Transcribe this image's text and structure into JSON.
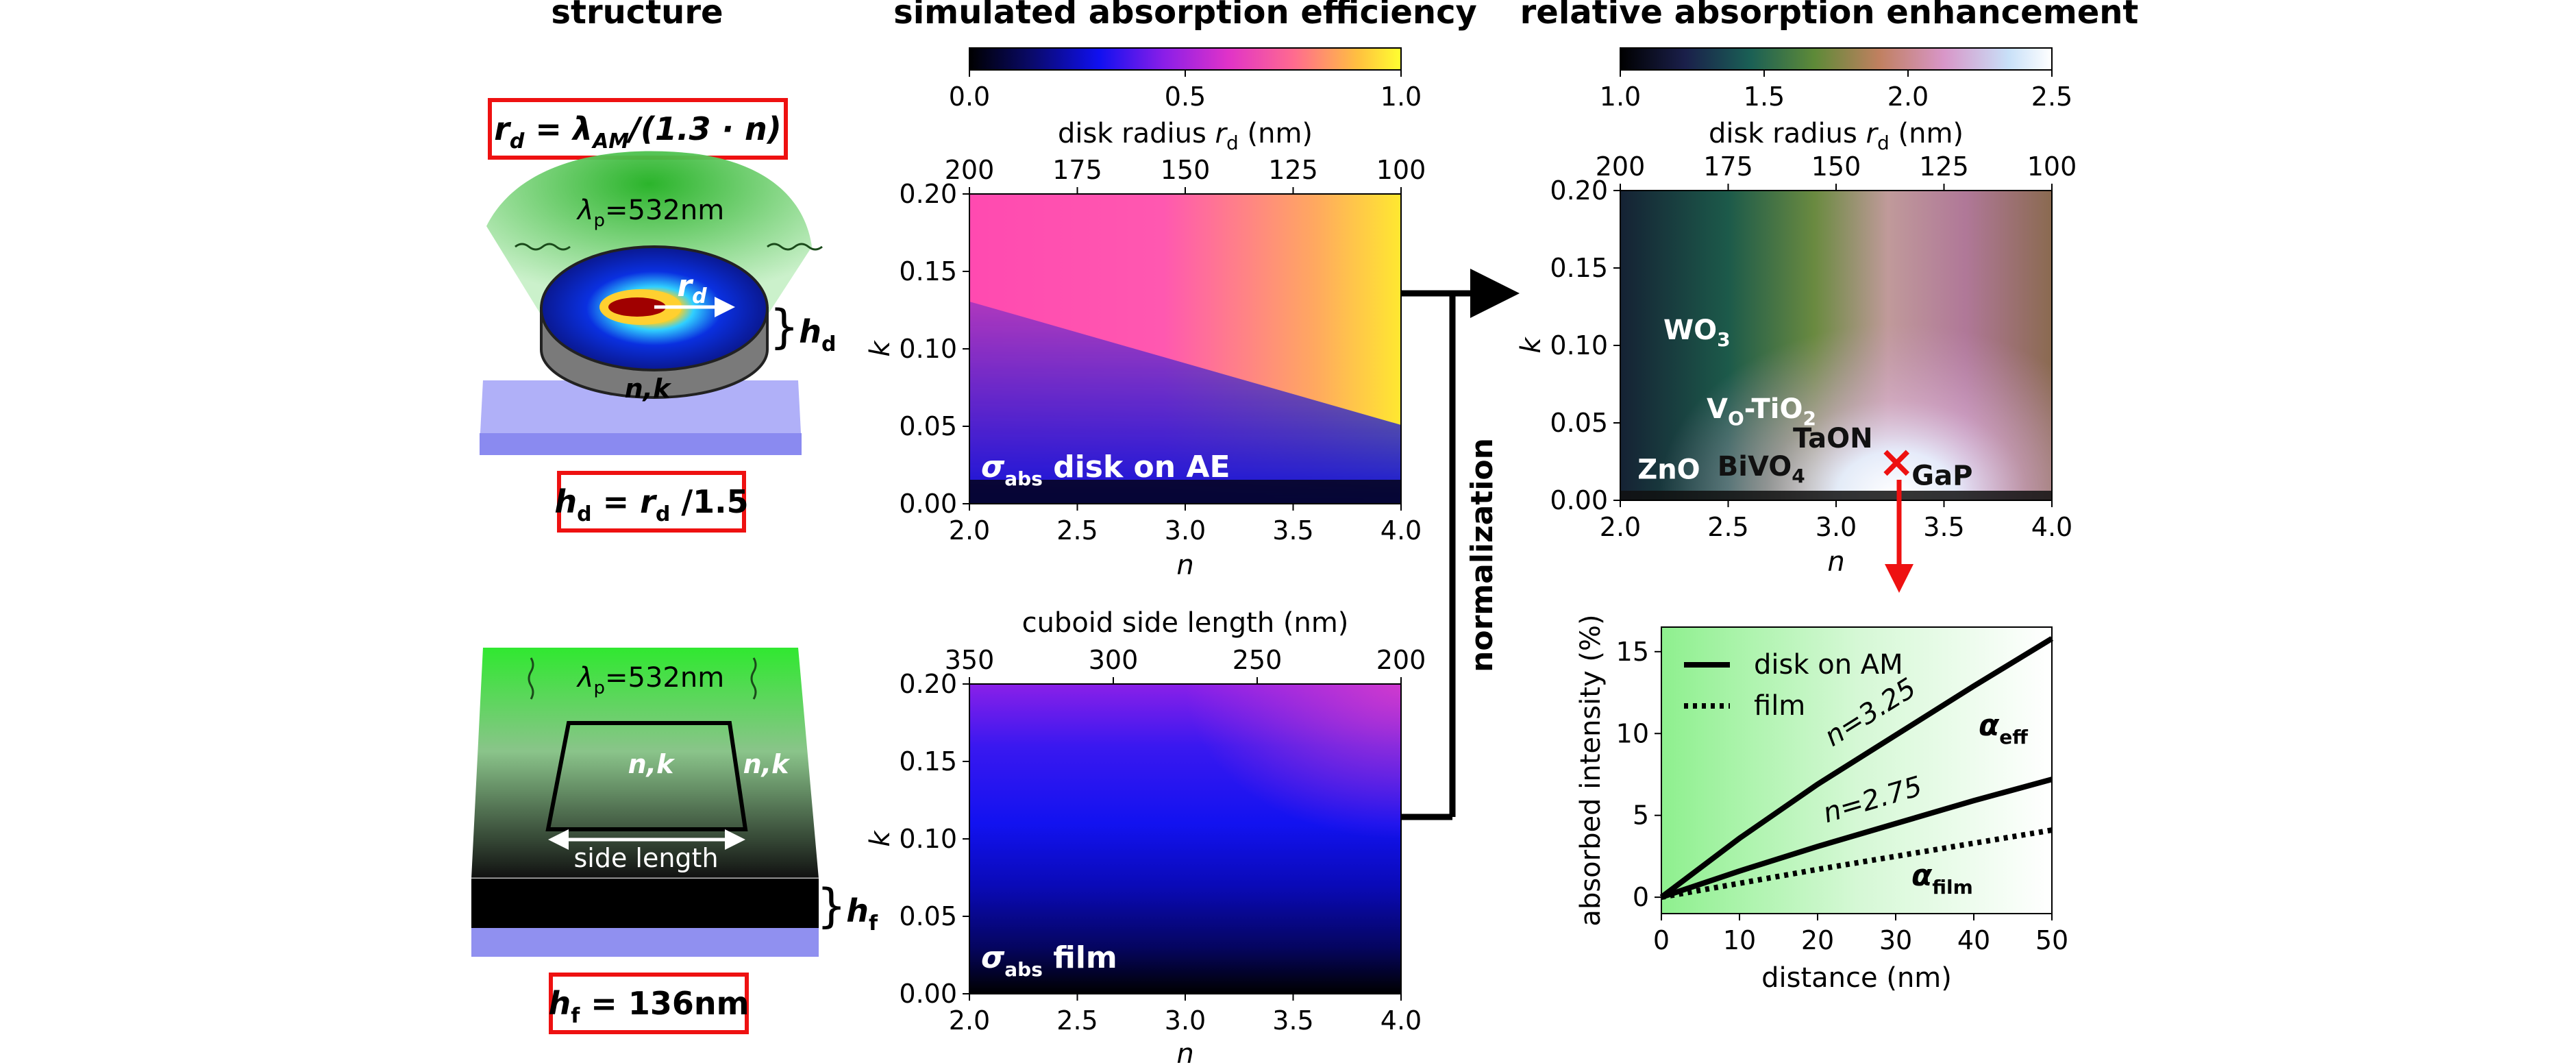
{
  "panels": {
    "structure": {
      "heading": "structure"
    },
    "simulated": {
      "heading": "simulated absorption efficiency"
    },
    "enhancement": {
      "heading": "relative absorption enhancement"
    }
  },
  "structure": {
    "disk": {
      "formula_radius": {
        "r": "r",
        "d": "d",
        "eq": " = ",
        "lambda": "λ",
        "am": "AM",
        "rest": "/(1.3 · n)"
      },
      "pump": {
        "lambda": "λ",
        "p": "p",
        "val": "=532nm"
      },
      "label_rd": {
        "r": "r",
        "d": "d"
      },
      "label_hd": {
        "brace": "}",
        "h": "h",
        "d": "d"
      },
      "label_nk": "n,k",
      "formula_height": {
        "h": "h",
        "d": "d",
        "eq": " = ",
        "r": "r",
        "d2": "d",
        "rest": " /1.5"
      }
    },
    "film": {
      "pump": {
        "lambda": "λ",
        "p": "p",
        "val": "=532nm"
      },
      "label_nk_inner": "n,k",
      "label_nk_side": "n,k",
      "side_length": "side length",
      "label_hf": {
        "brace": "}",
        "h": "h",
        "f": "f"
      },
      "formula_height": {
        "h": "h",
        "f": "f",
        "rest": " = 136nm"
      }
    }
  },
  "arrows": {
    "normalization": "normalization"
  },
  "colorbars": {
    "efficiency": {
      "ticks": [
        "0.0",
        "0.5",
        "1.0"
      ],
      "range": [
        0,
        1
      ]
    },
    "enhancement": {
      "ticks": [
        "1.0",
        "1.5",
        "2.0",
        "2.5"
      ],
      "range": [
        1,
        2.5
      ]
    }
  },
  "chart_data": [
    {
      "type": "heatmap",
      "id": "disk_efficiency",
      "label": {
        "sigma": "σ",
        "sub": "abs",
        "rest": " disk on AE"
      },
      "xlabel": "n",
      "ylabel": "k",
      "xticks": [
        "2.0",
        "2.5",
        "3.0",
        "3.5",
        "4.0"
      ],
      "yticks": [
        "0.00",
        "0.05",
        "0.10",
        "0.15",
        "0.20"
      ],
      "xlim": [
        2.0,
        4.0
      ],
      "ylim": [
        0.0,
        0.2
      ],
      "top_axis": {
        "label_pre": "disk radius ",
        "label_var": "r",
        "label_sub": "d",
        "label_post": " (nm)",
        "ticks": [
          "200",
          "175",
          "150",
          "125",
          "100"
        ]
      },
      "colormap": "plasma",
      "vmin": 0,
      "vmax": 1
    },
    {
      "type": "heatmap",
      "id": "film_efficiency",
      "label": {
        "sigma": "σ",
        "sub": "abs",
        "rest": " film"
      },
      "xlabel": "n",
      "ylabel": "k",
      "xticks": [
        "2.0",
        "2.5",
        "3.0",
        "3.5",
        "4.0"
      ],
      "yticks": [
        "0.00",
        "0.05",
        "0.10",
        "0.15",
        "0.20"
      ],
      "xlim": [
        2.0,
        4.0
      ],
      "ylim": [
        0.0,
        0.2
      ],
      "top_axis": {
        "label": "cuboid side length (nm)",
        "ticks": [
          "350",
          "300",
          "250",
          "200"
        ]
      },
      "colormap": "plasma",
      "vmin": 0,
      "vmax": 1
    },
    {
      "type": "heatmap",
      "id": "enhancement_map",
      "xlabel": "n",
      "ylabel": "k",
      "xticks": [
        "2.0",
        "2.5",
        "3.0",
        "3.5",
        "4.0"
      ],
      "yticks": [
        "0.00",
        "0.05",
        "0.10",
        "0.15",
        "0.20"
      ],
      "xlim": [
        2.0,
        4.0
      ],
      "ylim": [
        0.0,
        0.2
      ],
      "top_axis": {
        "label_pre": "disk radius ",
        "label_var": "r",
        "label_sub": "d",
        "label_post": " (nm)",
        "ticks": [
          "200",
          "175",
          "150",
          "125",
          "100"
        ]
      },
      "colormap": "cubehelix",
      "vmin": 1,
      "vmax": 2.5,
      "materials": [
        {
          "main": "WO",
          "sub": "3",
          "n": 2.2,
          "k": 0.104,
          "color": "#ffffff"
        },
        {
          "main": "V",
          "sub": "O",
          "main2": "-TiO",
          "sub2": "2",
          "n": 2.4,
          "k": 0.053,
          "color": "#ffffff"
        },
        {
          "main": "TaON",
          "n": 2.8,
          "k": 0.034,
          "color": "#111111"
        },
        {
          "main": "ZnO",
          "n": 2.08,
          "k": 0.014,
          "color": "#ffffff"
        },
        {
          "main": "BiVO",
          "sub": "4",
          "n": 2.45,
          "k": 0.016,
          "color": "#111111"
        },
        {
          "main": "GaP",
          "n": 3.35,
          "k": 0.01,
          "color": "#111111"
        }
      ],
      "marker": {
        "n": 3.28,
        "k": 0.025,
        "symbol": "×",
        "color": "#ee1111"
      }
    },
    {
      "type": "line",
      "id": "absorbed_intensity",
      "xlabel": "distance (nm)",
      "ylabel": "absorbed intensity (%)",
      "xlim": [
        0,
        50
      ],
      "ylim": [
        -1,
        16.5
      ],
      "xticks": [
        0,
        10,
        20,
        30,
        40,
        50
      ],
      "yticks": [
        0,
        5,
        10,
        15
      ],
      "legend": {
        "position": "top-left",
        "entries": [
          {
            "label": "disk on AM",
            "style": "solid"
          },
          {
            "label": "film",
            "style": "dotted"
          }
        ]
      },
      "series": [
        {
          "label": "n=3.25",
          "style": "solid",
          "x": [
            0,
            10,
            20,
            30,
            40,
            50
          ],
          "y": [
            0,
            3.6,
            6.9,
            9.9,
            12.9,
            15.8
          ]
        },
        {
          "label": "n=2.75",
          "style": "solid",
          "x": [
            0,
            10,
            20,
            30,
            40,
            50
          ],
          "y": [
            0,
            1.6,
            3.1,
            4.5,
            5.9,
            7.2
          ]
        },
        {
          "style": "dotted",
          "x": [
            0,
            10,
            20,
            30,
            40,
            50
          ],
          "y": [
            0,
            0.85,
            1.7,
            2.5,
            3.3,
            4.1
          ]
        }
      ],
      "annotations": {
        "alpha_eff": {
          "alpha": "α",
          "sub": "eff"
        },
        "alpha_film": {
          "alpha": "α",
          "sub": "film"
        }
      }
    }
  ]
}
